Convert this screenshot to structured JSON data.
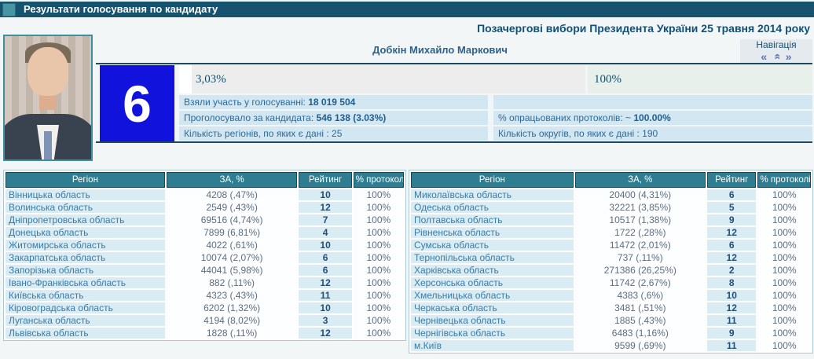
{
  "header": {
    "title": "Результати голосування по кандидату"
  },
  "election": {
    "title": "Позачергові вибори Президента України 25 травня 2014 року"
  },
  "candidate": {
    "name": "Добкін Михайло Маркович",
    "number": "6"
  },
  "navigation": {
    "label": "Навігація",
    "prev_icon": "«",
    "up_icon": "»",
    "next_icon": "»"
  },
  "summary": {
    "vote_bar": {
      "label": "3,03%",
      "percent": 3.03
    },
    "protocol_bar": {
      "label": "100%",
      "percent": 100
    },
    "left_rows": [
      {
        "label": "Взяли участь у голосуванні: ",
        "strong": "18 019 504"
      },
      {
        "label": "Проголосувало за кандидата: ",
        "strong": "546 138 (3.03%)"
      },
      {
        "label": "Кількість регіонів, по яких є дані : 25",
        "strong": ""
      }
    ],
    "right_rows": [
      {
        "label": "",
        "strong": ""
      },
      {
        "label": "% опрацьованих протоколів: ~ ",
        "strong": "100.00%"
      },
      {
        "label": "Кількість округів, по яких є дані : 190",
        "strong": ""
      }
    ]
  },
  "results": {
    "columns": [
      "Регіон",
      "ЗА, %",
      "Рейтинг",
      "% протоколів"
    ],
    "left_table": [
      [
        "Вінницька область",
        "4208 (,47%)",
        "10",
        "100%"
      ],
      [
        "Волинська область",
        "2549 (,43%)",
        "12",
        "100%"
      ],
      [
        "Дніпропетровська область",
        "69516 (4,74%)",
        "7",
        "100%"
      ],
      [
        "Донецька область",
        "7899 (6,81%)",
        "4",
        "100%"
      ],
      [
        "Житомирська область",
        "4022 (,61%)",
        "10",
        "100%"
      ],
      [
        "Закарпатська область",
        "10074 (2,07%)",
        "6",
        "100%"
      ],
      [
        "Запорізька область",
        "44041 (5,98%)",
        "6",
        "100%"
      ],
      [
        "Івано-Франківська область",
        "882 (,11%)",
        "12",
        "100%"
      ],
      [
        "Київська область",
        "4323 (,43%)",
        "11",
        "100%"
      ],
      [
        "Кіровоградська область",
        "6202 (1,32%)",
        "10",
        "100%"
      ],
      [
        "Луганська область",
        "4194 (8,02%)",
        "3",
        "100%"
      ],
      [
        "Львівська область",
        "1828 (,11%)",
        "12",
        "100%"
      ]
    ],
    "right_table": [
      [
        "Миколаївська область",
        "20400 (4,31%)",
        "6",
        "100%"
      ],
      [
        "Одеська область",
        "32221 (3,85%)",
        "5",
        "100%"
      ],
      [
        "Полтавська область",
        "10517 (1,38%)",
        "9",
        "100%"
      ],
      [
        "Рівненська область",
        "1722 (,28%)",
        "12",
        "100%"
      ],
      [
        "Сумська область",
        "11472 (2,01%)",
        "6",
        "100%"
      ],
      [
        "Тернопільська область",
        "737 (,11%)",
        "12",
        "100%"
      ],
      [
        "Харківська область",
        "271386 (26,25%)",
        "2",
        "100%"
      ],
      [
        "Херсонська область",
        "11742 (2,67%)",
        "8",
        "100%"
      ],
      [
        "Хмельницька область",
        "4383 (,6%)",
        "10",
        "100%"
      ],
      [
        "Черкаська область",
        "3481 (,51%)",
        "12",
        "100%"
      ],
      [
        "Чернівецька область",
        "1885 (,43%)",
        "11",
        "100%"
      ],
      [
        "Чернігівська область",
        "6483 (1,16%)",
        "9",
        "100%"
      ],
      [
        "м.Київ",
        "9599 (,69%)",
        "11",
        "100%"
      ]
    ]
  },
  "colors": {
    "header_bar": "#17536f",
    "accent_teal": "#2e7d90",
    "candidate_number_blue": "#1113dd",
    "stat_row_blue": "#d2e7f1",
    "region_cell_blue": "#d9ecf3",
    "protocol_bar_green": "#e7f0ea",
    "link_blue": "#3b7ba6",
    "dark_rule": "#1c4a63"
  }
}
